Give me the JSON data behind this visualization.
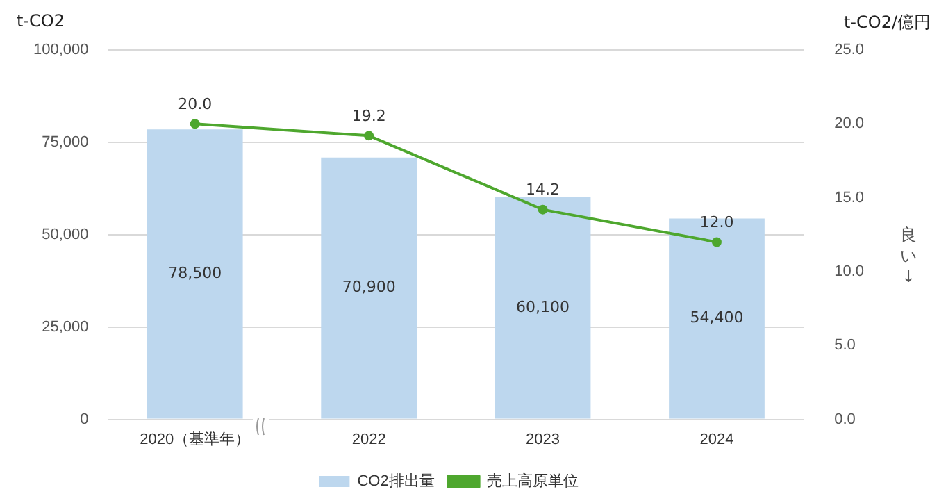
{
  "chart_data": {
    "type": "bar",
    "categories": [
      "2020（基準年）",
      "2022",
      "2023",
      "2024"
    ],
    "ylabel": "t-CO2",
    "y2label": "t-CO2/億円",
    "ylim": [
      0,
      100000
    ],
    "yticks": [
      {
        "value": 0,
        "label": "0"
      },
      {
        "value": 25000,
        "label": "25,000"
      },
      {
        "value": 50000,
        "label": "50,000"
      },
      {
        "value": 75000,
        "label": "75,000"
      },
      {
        "value": 100000,
        "label": "100,000"
      }
    ],
    "y2lim": [
      0,
      25
    ],
    "y2ticks": [
      {
        "value": 0,
        "label": "0.0"
      },
      {
        "value": 5,
        "label": "5.0"
      },
      {
        "value": 10,
        "label": "10.0"
      },
      {
        "value": 15,
        "label": "15.0"
      },
      {
        "value": 20,
        "label": "20.0"
      },
      {
        "value": 25,
        "label": "25.0"
      }
    ],
    "series": [
      {
        "name": "CO2排出量",
        "color": "#bdd7ee",
        "values": [
          78500,
          70900,
          60100,
          54400
        ],
        "value_labels": [
          "78,500",
          "70,900",
          "60,100",
          "54,400"
        ]
      },
      {
        "name": "売上高原単位",
        "type": "line",
        "axis": "y2",
        "color": "#4ea72e",
        "values": [
          20.0,
          19.2,
          14.2,
          12.0
        ],
        "value_labels": [
          "20.0",
          "19.2",
          "14.2",
          "12.0"
        ]
      }
    ],
    "annotations": [
      "良い↓"
    ],
    "grid": "y",
    "legend": "bottom",
    "marker": "circle",
    "line_style": "solid"
  }
}
